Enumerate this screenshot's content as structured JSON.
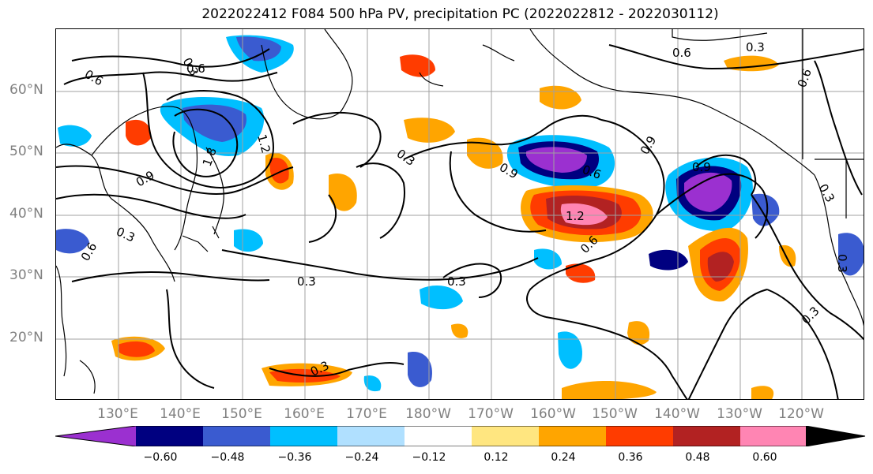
{
  "title": "2022022412 F084 500 hPa PV, precipitation PC (2022022812 - 2022030112)",
  "lat_labels": [
    "60°N",
    "50°N",
    "40°N",
    "30°N",
    "20°N"
  ],
  "lon_labels": [
    "130°E",
    "140°E",
    "150°E",
    "160°E",
    "170°E",
    "180°W",
    "170°W",
    "160°W",
    "150°W",
    "140°W",
    "130°W",
    "120°W"
  ],
  "colorbar": {
    "ticks": [
      "−0.60",
      "−0.48",
      "−0.36",
      "−0.24",
      "−0.12",
      "0.12",
      "0.24",
      "0.36",
      "0.48",
      "0.60"
    ],
    "colors": [
      "#9b30d0",
      "#000080",
      "#3a5bd0",
      "#00bfff",
      "#b0e0ff",
      "#ffffff",
      "#ffe680",
      "#ffa500",
      "#ff3c00",
      "#b22222",
      "#ff85b3"
    ]
  },
  "contour_labels": [
    "0.6",
    "0.6",
    "1.2",
    "1.8",
    "0.9",
    "0.3",
    "0.3",
    "0.3",
    "0.9",
    "0.6",
    "0.9",
    "1.2",
    "0.6",
    "0.3",
    "0.3",
    "0.6",
    "0.3",
    "0.6",
    "0.3",
    "0.3",
    "0.3",
    "0.9",
    "0.3",
    "0.6"
  ]
}
